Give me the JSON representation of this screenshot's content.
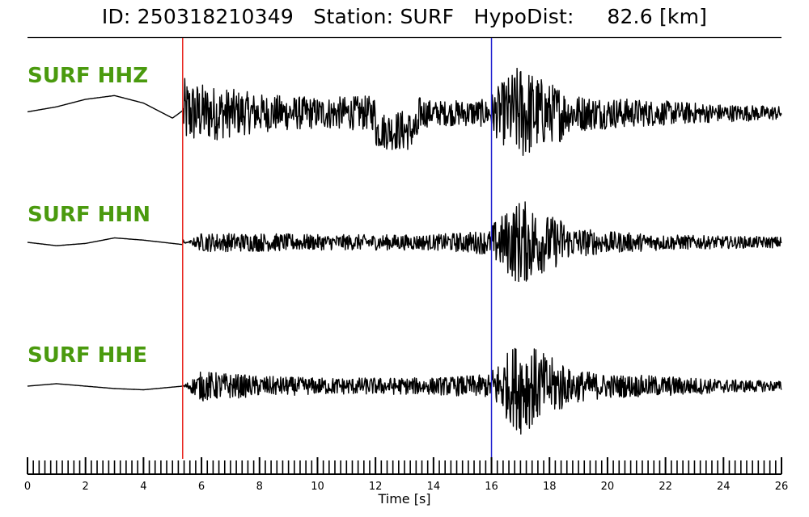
{
  "title": "ID: 250318210349   Station: SURF   HypoDist:     82.6 [km]",
  "colors": {
    "label": "#4a9a0e",
    "p_pick": "#e8201a",
    "s_pick": "#2020d0",
    "trace": "#000000"
  },
  "chart_data": {
    "type": "line",
    "xlabel": "Time [s]",
    "xlim": [
      0,
      26
    ],
    "x_ticks": [
      "0",
      "2",
      "4",
      "6",
      "8",
      "10",
      "12",
      "14",
      "16",
      "18",
      "20",
      "22",
      "24",
      "26"
    ],
    "picks": [
      {
        "phase": "P",
        "time": 5.35,
        "color": "#e8201a"
      },
      {
        "phase": "S",
        "time": 16.0,
        "color": "#2020d0"
      }
    ],
    "series": [
      {
        "name": "SURF HHZ",
        "envelope": [
          [
            0,
            0.05
          ],
          [
            1,
            0.25
          ],
          [
            2,
            0.55
          ],
          [
            3,
            0.7
          ],
          [
            4,
            0.4
          ],
          [
            5,
            -0.2
          ],
          [
            5.35,
            0.1
          ],
          [
            5.4,
            1.0
          ],
          [
            6,
            0.85
          ],
          [
            8,
            0.55
          ],
          [
            10,
            0.45
          ],
          [
            12,
            0.5
          ],
          [
            13,
            0.6
          ],
          [
            14,
            0.35
          ],
          [
            16,
            0.4
          ],
          [
            17,
            1.0
          ],
          [
            18,
            0.6
          ],
          [
            20,
            0.45
          ],
          [
            22,
            0.35
          ],
          [
            24,
            0.25
          ],
          [
            26,
            0.2
          ]
        ]
      },
      {
        "name": "SURF HHN",
        "envelope": [
          [
            0,
            0.0
          ],
          [
            1,
            -0.15
          ],
          [
            2,
            -0.05
          ],
          [
            3,
            0.2
          ],
          [
            4,
            0.1
          ],
          [
            5.35,
            -0.1
          ],
          [
            6,
            0.3
          ],
          [
            8,
            0.3
          ],
          [
            10,
            0.25
          ],
          [
            12,
            0.25
          ],
          [
            14,
            0.25
          ],
          [
            16,
            0.4
          ],
          [
            17,
            1.0
          ],
          [
            18,
            0.6
          ],
          [
            20,
            0.35
          ],
          [
            22,
            0.25
          ],
          [
            24,
            0.2
          ],
          [
            26,
            0.18
          ]
        ]
      },
      {
        "name": "SURF HHE",
        "envelope": [
          [
            0,
            0.0
          ],
          [
            1,
            0.1
          ],
          [
            2,
            0.0
          ],
          [
            3,
            -0.1
          ],
          [
            4,
            -0.15
          ],
          [
            5.35,
            0.0
          ],
          [
            6,
            0.45
          ],
          [
            8,
            0.3
          ],
          [
            10,
            0.25
          ],
          [
            12,
            0.25
          ],
          [
            14,
            0.25
          ],
          [
            16,
            0.35
          ],
          [
            17,
            1.0
          ],
          [
            18,
            0.6
          ],
          [
            20,
            0.35
          ],
          [
            22,
            0.3
          ],
          [
            24,
            0.2
          ],
          [
            26,
            0.15
          ]
        ]
      }
    ]
  }
}
